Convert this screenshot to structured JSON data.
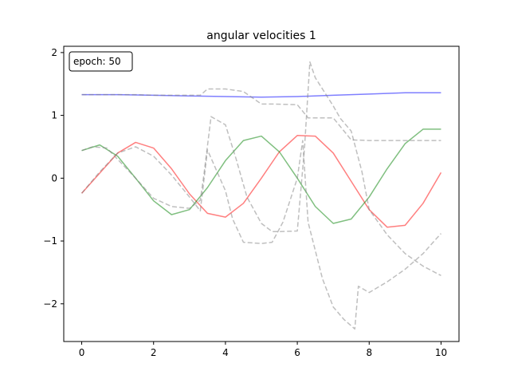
{
  "chart_data": {
    "type": "line",
    "title": "angular velocities 1",
    "xlabel": "",
    "ylabel": "",
    "xlim": [
      -0.5,
      10.5
    ],
    "ylim": [
      -2.6,
      2.1
    ],
    "xticks": [
      0,
      2,
      4,
      6,
      8,
      10
    ],
    "xtick_labels": [
      "0",
      "2",
      "4",
      "6",
      "8",
      "10"
    ],
    "yticks": [
      2,
      1,
      0,
      -1,
      -2
    ],
    "ytick_labels": [
      "2",
      "1",
      "0",
      "−1",
      "−2"
    ],
    "grid": false,
    "legend": "none",
    "annotation": "epoch: 50",
    "series": [
      {
        "style": "solid",
        "color": "#0000ff",
        "x": [
          0,
          1,
          2,
          3,
          4,
          5,
          6,
          7,
          8,
          9,
          10
        ],
        "y": [
          1.33,
          1.33,
          1.32,
          1.31,
          1.3,
          1.29,
          1.3,
          1.32,
          1.34,
          1.36,
          1.36
        ]
      },
      {
        "style": "solid",
        "color": "#ff0000",
        "x": [
          0,
          0.5,
          1,
          1.5,
          2,
          2.5,
          3,
          3.5,
          4,
          4.5,
          5,
          5.5,
          6,
          6.5,
          7,
          7.5,
          8,
          8.5,
          9,
          9.5,
          10
        ],
        "y": [
          -0.24,
          0.08,
          0.4,
          0.57,
          0.48,
          0.15,
          -0.25,
          -0.56,
          -0.62,
          -0.4,
          0.0,
          0.42,
          0.68,
          0.67,
          0.4,
          -0.05,
          -0.5,
          -0.78,
          -0.75,
          -0.4,
          0.09
        ]
      },
      {
        "style": "solid",
        "color": "#008000",
        "x": [
          0,
          0.5,
          1,
          1.5,
          2,
          2.5,
          3,
          3.5,
          4,
          4.5,
          5,
          5.5,
          6,
          6.5,
          7,
          7.5,
          8,
          8.5,
          9,
          9.5,
          10
        ],
        "y": [
          0.44,
          0.53,
          0.35,
          0.0,
          -0.36,
          -0.58,
          -0.5,
          -0.15,
          0.28,
          0.6,
          0.67,
          0.42,
          0.0,
          -0.45,
          -0.72,
          -0.65,
          -0.3,
          0.15,
          0.55,
          0.78,
          0.78
        ]
      },
      {
        "style": "dashed",
        "color": "#808080",
        "x": [
          0,
          0.5,
          1,
          1.5,
          2,
          2.5,
          3,
          3.3,
          3.5,
          4,
          4.5,
          5,
          5.4,
          6,
          6.3,
          7,
          7.5,
          8,
          8.5,
          9,
          9.5,
          10
        ],
        "y": [
          1.33,
          1.33,
          1.33,
          1.33,
          1.32,
          1.32,
          1.32,
          1.32,
          1.42,
          1.42,
          1.38,
          1.18,
          1.18,
          1.17,
          0.96,
          0.96,
          0.61,
          0.6,
          0.6,
          0.6,
          0.6,
          0.6
        ]
      },
      {
        "style": "dashed",
        "color": "#808080",
        "x": [
          0,
          0.3,
          0.7,
          1,
          1.5,
          2,
          2.5,
          3,
          3.3,
          3.4,
          3.6,
          4,
          4.3,
          4.6,
          5,
          5.3,
          5.5,
          6,
          6.2,
          6.35,
          6.5,
          7,
          7.2,
          7.5,
          7.8,
          8,
          8.5,
          9,
          9.5,
          10
        ],
        "y": [
          0.44,
          0.5,
          0.48,
          0.3,
          0.0,
          -0.32,
          -0.45,
          -0.48,
          -0.35,
          0.05,
          0.98,
          0.85,
          0.3,
          -0.3,
          -0.72,
          -0.85,
          -0.85,
          -0.84,
          0.48,
          1.85,
          1.6,
          1.15,
          0.95,
          0.75,
          0.1,
          -0.5,
          -0.9,
          -1.2,
          -1.4,
          -1.55
        ]
      },
      {
        "style": "dashed",
        "color": "#808080",
        "x": [
          0,
          0.5,
          1,
          1.5,
          2,
          2.5,
          3,
          3.3,
          3.5,
          4,
          4.2,
          4.5,
          5,
          5.3,
          5.6,
          6,
          6.15,
          6.3,
          6.7,
          7,
          7.3,
          7.6,
          7.7,
          8,
          8.5,
          9,
          9.5,
          10
        ],
        "y": [
          -0.24,
          0.1,
          0.4,
          0.5,
          0.35,
          0.05,
          -0.3,
          -0.52,
          0.45,
          -0.2,
          -0.65,
          -1.02,
          -1.04,
          -1.02,
          -0.7,
          0.0,
          0.6,
          -0.7,
          -1.6,
          -2.05,
          -2.25,
          -2.4,
          -1.72,
          -1.82,
          -1.65,
          -1.45,
          -1.2,
          -0.88
        ]
      }
    ]
  }
}
